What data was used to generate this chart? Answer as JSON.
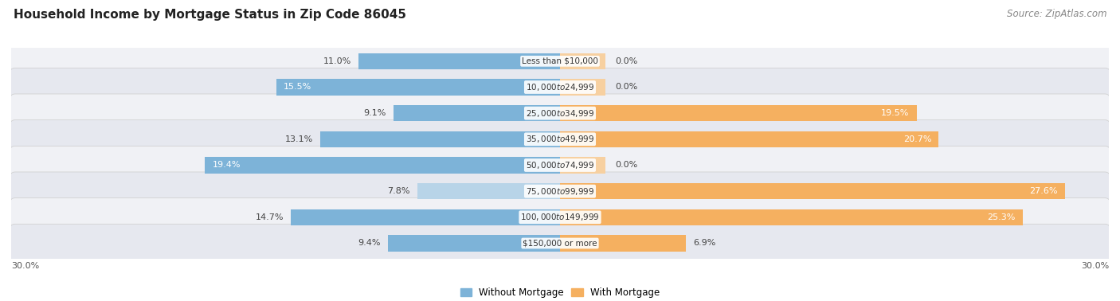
{
  "title": "Household Income by Mortgage Status in Zip Code 86045",
  "source": "Source: ZipAtlas.com",
  "categories": [
    "Less than $10,000",
    "$10,000 to $24,999",
    "$25,000 to $34,999",
    "$35,000 to $49,999",
    "$50,000 to $74,999",
    "$75,000 to $99,999",
    "$100,000 to $149,999",
    "$150,000 or more"
  ],
  "without_mortgage": [
    11.0,
    15.5,
    9.1,
    13.1,
    19.4,
    7.8,
    14.7,
    9.4
  ],
  "with_mortgage": [
    0.0,
    0.0,
    19.5,
    20.7,
    0.0,
    27.6,
    25.3,
    6.9
  ],
  "color_without": "#7db3d8",
  "color_without_light": "#b8d4e8",
  "color_with": "#f5b060",
  "color_with_light": "#f7d0a0",
  "row_bg_odd": "#f0f1f5",
  "row_bg_even": "#e6e8ef",
  "xlim": 30.0,
  "legend_without": "Without Mortgage",
  "legend_with": "With Mortgage",
  "title_fontsize": 11,
  "source_fontsize": 8.5,
  "bar_height": 0.62,
  "label_fontsize": 8.0,
  "cat_fontsize": 7.5
}
